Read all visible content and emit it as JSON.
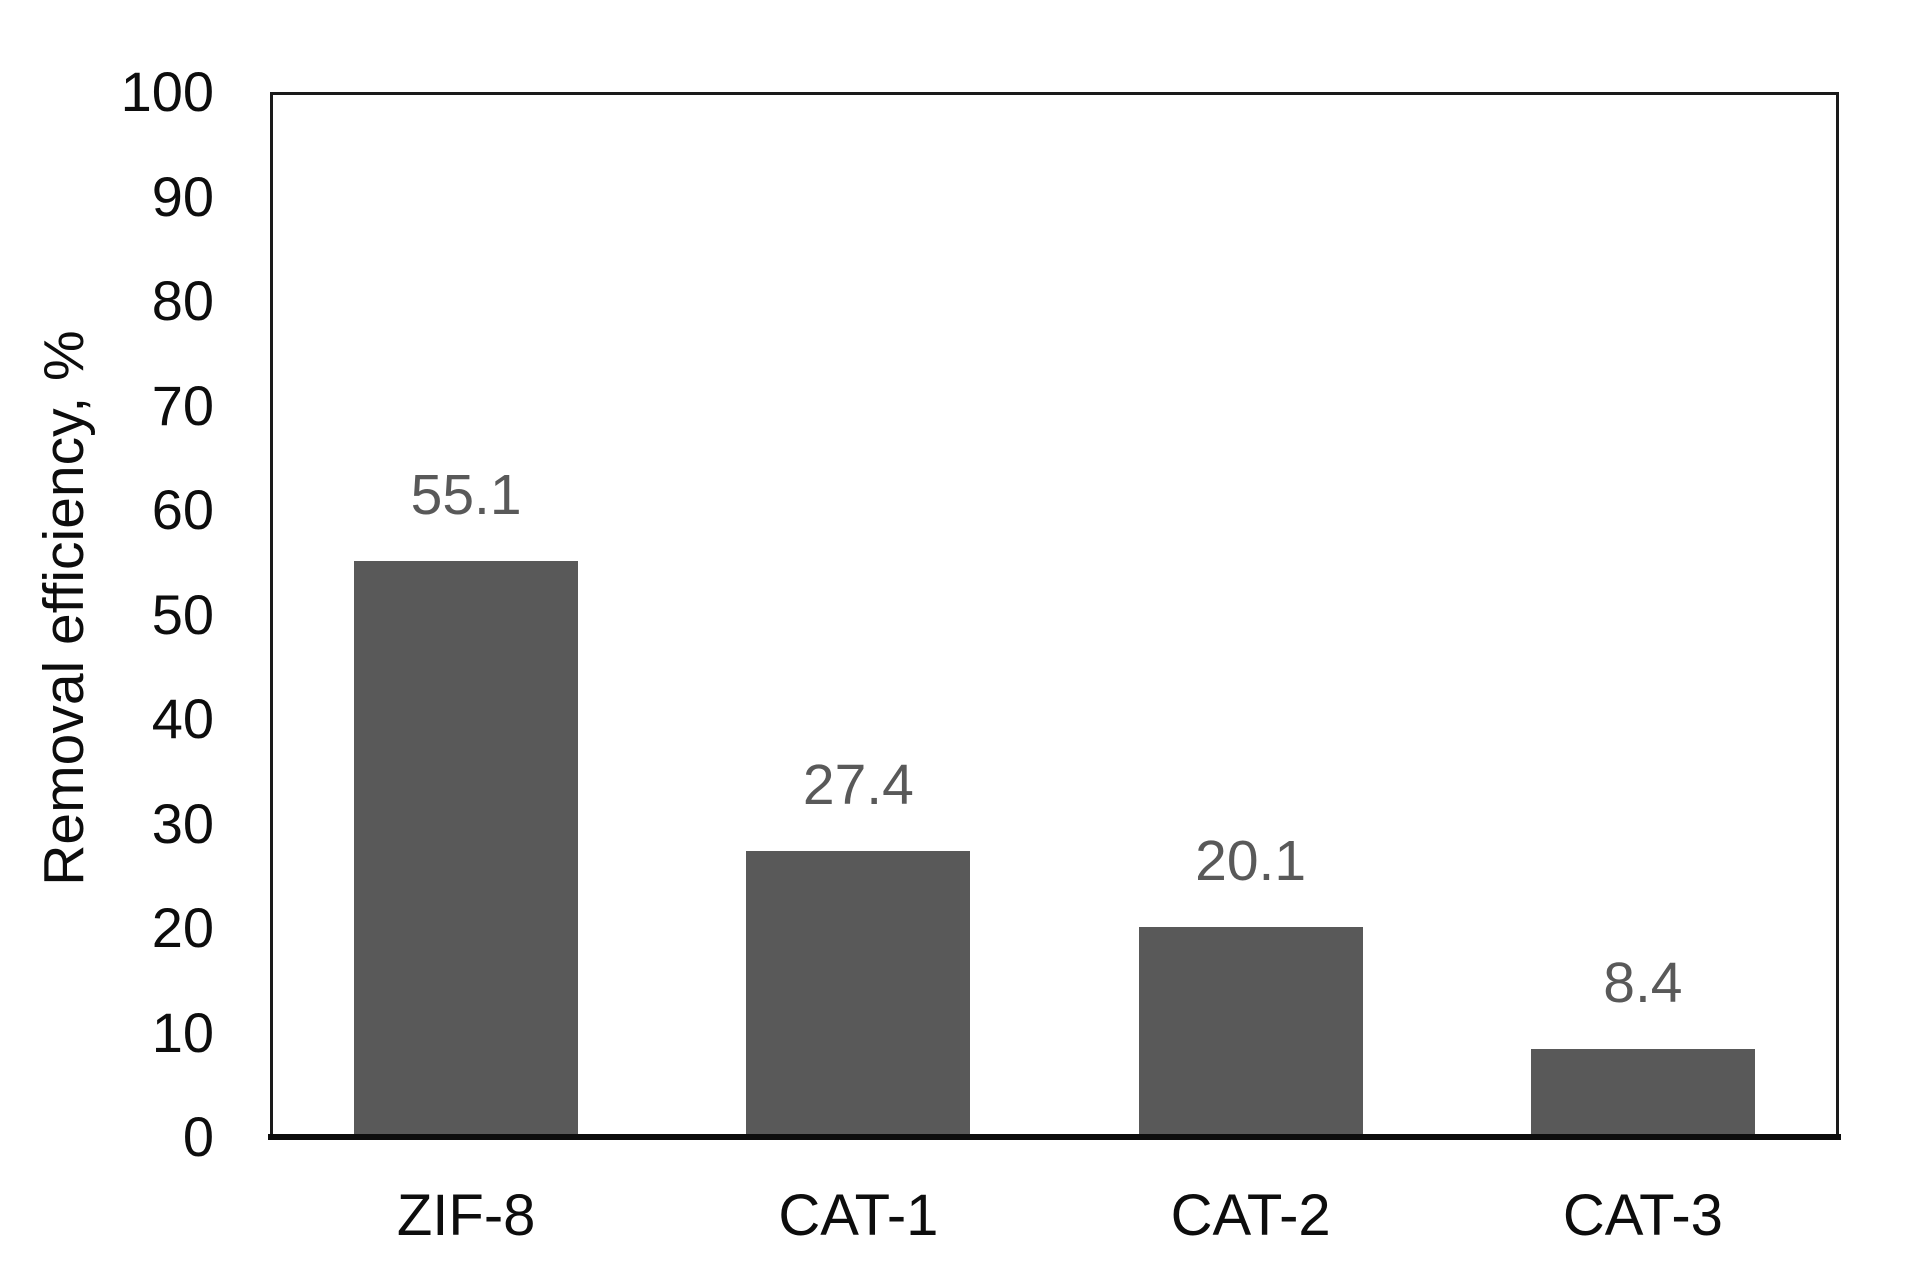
{
  "chart_data": {
    "type": "bar",
    "title": "",
    "xlabel": "",
    "ylabel": "Removal efficiency, %",
    "categories": [
      "ZIF-8",
      "CAT-1",
      "CAT-2",
      "CAT-3"
    ],
    "series": [
      {
        "name": "Removal efficiency",
        "values": [
          55.1,
          27.4,
          20.1,
          8.4
        ],
        "data_labels": [
          "55.1",
          "27.4",
          "20.1",
          "8.4"
        ]
      }
    ],
    "ylim": [
      0,
      100
    ],
    "yticks": [
      0,
      10,
      20,
      30,
      40,
      50,
      60,
      70,
      80,
      90,
      100
    ],
    "grid": false,
    "legend_position": "none",
    "data_labels_position": "outside-end",
    "colors": {
      "bar_fill": "#595959",
      "value_label_text": "#595959",
      "axis_text": "#0d0d0d",
      "frame_border": "#1a1a1a",
      "axis_line": "#0d0d0d",
      "background": "#ffffff"
    }
  }
}
